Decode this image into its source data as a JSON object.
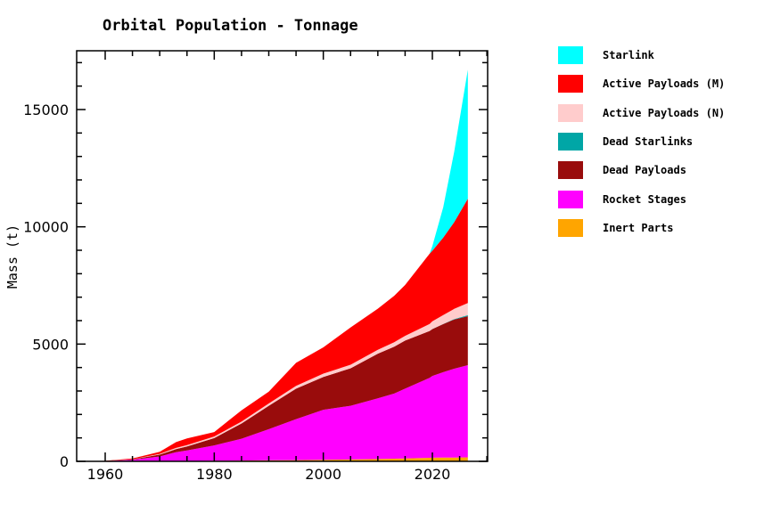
{
  "chart_data": {
    "type": "area",
    "stacked": true,
    "title": "Orbital Population - Tonnage",
    "xlabel": "",
    "ylabel": "Mass (t)",
    "xlim": [
      1955,
      2030
    ],
    "ylim": [
      0,
      17500
    ],
    "xticks": [
      1960,
      1980,
      2000,
      2020
    ],
    "xtick_labels": [
      "1960",
      "1980",
      "2000",
      "2020"
    ],
    "yticks": [
      0,
      5000,
      10000,
      15000
    ],
    "ytick_labels": [
      "0",
      "5000",
      "10000",
      "15000"
    ],
    "grid": false,
    "legend_position": "right",
    "x": [
      1957,
      1960,
      1965,
      1970,
      1973,
      1975,
      1980,
      1985,
      1990,
      1995,
      2000,
      2005,
      2010,
      2013,
      2015,
      2019.5,
      2020,
      2022,
      2024,
      2026.5
    ],
    "series": [
      {
        "name": "Inert Parts",
        "color": "#ffa500",
        "values": [
          0,
          1,
          3,
          8,
          12,
          15,
          25,
          35,
          45,
          55,
          65,
          80,
          100,
          115,
          125,
          150,
          155,
          160,
          165,
          170
        ]
      },
      {
        "name": "Rocket Stages",
        "color": "#ff00ff",
        "values": [
          0,
          10,
          60,
          200,
          380,
          450,
          655,
          930,
          1325,
          1745,
          2135,
          2290,
          2590,
          2775,
          2975,
          3410,
          3485,
          3640,
          3785,
          3930
        ]
      },
      {
        "name": "Dead Payloads",
        "color": "#990c0c",
        "values": [
          0,
          4,
          20,
          80,
          130,
          170,
          310,
          650,
          1000,
          1300,
          1400,
          1600,
          1900,
          2000,
          2050,
          2000,
          2000,
          2050,
          2100,
          2090
        ]
      },
      {
        "name": "Dead Starlinks",
        "color": "#00a6a6",
        "values": [
          0,
          0,
          0,
          0,
          0,
          0,
          0,
          0,
          0,
          0,
          0,
          0,
          0,
          0,
          0,
          0,
          2,
          8,
          20,
          40
        ]
      },
      {
        "name": "Active Payloads (N)",
        "color": "#ffcccc",
        "values": [
          0,
          2,
          10,
          30,
          50,
          60,
          70,
          80,
          100,
          120,
          140,
          150,
          170,
          190,
          200,
          300,
          330,
          380,
          430,
          520
        ]
      },
      {
        "name": "Active Payloads (M)",
        "color": "#ff0000",
        "values": [
          0,
          5,
          30,
          90,
          250,
          280,
          190,
          480,
          500,
          980,
          1120,
          1590,
          1750,
          1980,
          2170,
          2990,
          3010,
          3300,
          3700,
          4450
        ]
      },
      {
        "name": "Starlink",
        "color": "#00ffff",
        "values": [
          0,
          0,
          0,
          0,
          0,
          0,
          0,
          0,
          0,
          0,
          0,
          0,
          0,
          0,
          0,
          0,
          200,
          1300,
          3000,
          5500
        ]
      }
    ]
  },
  "legend": {
    "items": [
      {
        "label": "Starlink",
        "color": "#00ffff"
      },
      {
        "label": "Active Payloads (M)",
        "color": "#ff0000"
      },
      {
        "label": "Active Payloads (N)",
        "color": "#ffcccc"
      },
      {
        "label": "Dead Starlinks",
        "color": "#00a6a6"
      },
      {
        "label": "Dead Payloads",
        "color": "#990c0c"
      },
      {
        "label": "Rocket Stages",
        "color": "#ff00ff"
      },
      {
        "label": "Inert Parts",
        "color": "#ffa500"
      }
    ]
  }
}
